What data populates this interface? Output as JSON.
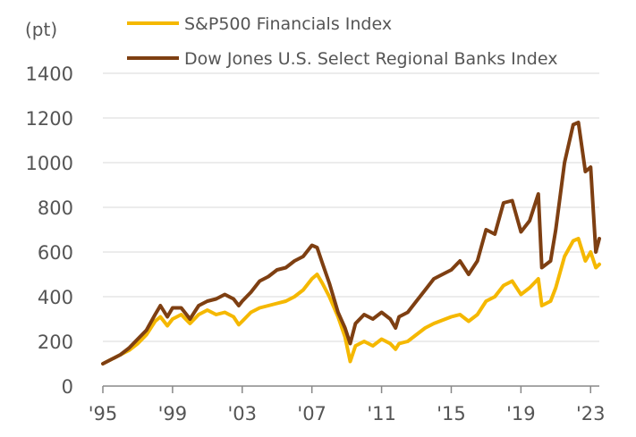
{
  "chart_data": {
    "type": "line",
    "ylabel": "(pt)",
    "ylim": [
      0,
      1400
    ],
    "yticks": [
      0,
      200,
      400,
      600,
      800,
      1000,
      1200,
      1400
    ],
    "xlim": [
      1995.0,
      2023.5
    ],
    "xticks": [
      {
        "value": 1995,
        "label": "'95"
      },
      {
        "value": 1999,
        "label": "'99"
      },
      {
        "value": 2003,
        "label": "'03"
      },
      {
        "value": 2007,
        "label": "'07"
      },
      {
        "value": 2011,
        "label": "'11"
      },
      {
        "value": 2015,
        "label": "'15"
      },
      {
        "value": 2019,
        "label": "'19"
      },
      {
        "value": 2023,
        "label": "'23"
      }
    ],
    "grid": true,
    "legend_position": "top",
    "series": [
      {
        "name": "S&P500 Financials Index",
        "color": "#F5B800",
        "points": [
          [
            1995.0,
            100
          ],
          [
            1995.5,
            120
          ],
          [
            1996.0,
            140
          ],
          [
            1996.5,
            160
          ],
          [
            1997.0,
            190
          ],
          [
            1997.5,
            230
          ],
          [
            1998.0,
            290
          ],
          [
            1998.3,
            310
          ],
          [
            1998.7,
            270
          ],
          [
            1999.0,
            300
          ],
          [
            1999.5,
            320
          ],
          [
            2000.0,
            280
          ],
          [
            2000.5,
            320
          ],
          [
            2001.0,
            340
          ],
          [
            2001.5,
            320
          ],
          [
            2002.0,
            330
          ],
          [
            2002.5,
            310
          ],
          [
            2002.8,
            275
          ],
          [
            2003.0,
            290
          ],
          [
            2003.5,
            330
          ],
          [
            2004.0,
            350
          ],
          [
            2004.5,
            360
          ],
          [
            2005.0,
            370
          ],
          [
            2005.5,
            380
          ],
          [
            2006.0,
            400
          ],
          [
            2006.5,
            430
          ],
          [
            2007.0,
            480
          ],
          [
            2007.3,
            500
          ],
          [
            2007.6,
            460
          ],
          [
            2008.0,
            400
          ],
          [
            2008.5,
            310
          ],
          [
            2008.9,
            220
          ],
          [
            2009.2,
            110
          ],
          [
            2009.5,
            180
          ],
          [
            2010.0,
            200
          ],
          [
            2010.5,
            180
          ],
          [
            2011.0,
            210
          ],
          [
            2011.5,
            190
          ],
          [
            2011.8,
            165
          ],
          [
            2012.0,
            190
          ],
          [
            2012.5,
            200
          ],
          [
            2013.0,
            230
          ],
          [
            2013.5,
            260
          ],
          [
            2014.0,
            280
          ],
          [
            2014.5,
            295
          ],
          [
            2015.0,
            310
          ],
          [
            2015.5,
            320
          ],
          [
            2016.0,
            290
          ],
          [
            2016.5,
            320
          ],
          [
            2017.0,
            380
          ],
          [
            2017.5,
            400
          ],
          [
            2018.0,
            450
          ],
          [
            2018.5,
            470
          ],
          [
            2019.0,
            410
          ],
          [
            2019.5,
            440
          ],
          [
            2020.0,
            480
          ],
          [
            2020.2,
            360
          ],
          [
            2020.7,
            380
          ],
          [
            2021.0,
            440
          ],
          [
            2021.5,
            580
          ],
          [
            2022.0,
            650
          ],
          [
            2022.3,
            660
          ],
          [
            2022.7,
            560
          ],
          [
            2023.0,
            600
          ],
          [
            2023.3,
            530
          ],
          [
            2023.5,
            545
          ]
        ]
      },
      {
        "name": "Dow Jones U.S. Select Regional Banks Index",
        "color": "#7E3F12",
        "points": [
          [
            1995.0,
            100
          ],
          [
            1995.5,
            120
          ],
          [
            1996.0,
            140
          ],
          [
            1996.5,
            170
          ],
          [
            1997.0,
            210
          ],
          [
            1997.5,
            250
          ],
          [
            1998.0,
            320
          ],
          [
            1998.3,
            360
          ],
          [
            1998.7,
            310
          ],
          [
            1999.0,
            350
          ],
          [
            1999.5,
            350
          ],
          [
            2000.0,
            300
          ],
          [
            2000.5,
            360
          ],
          [
            2001.0,
            380
          ],
          [
            2001.5,
            390
          ],
          [
            2002.0,
            410
          ],
          [
            2002.5,
            390
          ],
          [
            2002.8,
            360
          ],
          [
            2003.0,
            380
          ],
          [
            2003.5,
            420
          ],
          [
            2004.0,
            470
          ],
          [
            2004.5,
            490
          ],
          [
            2005.0,
            520
          ],
          [
            2005.5,
            530
          ],
          [
            2006.0,
            560
          ],
          [
            2006.5,
            580
          ],
          [
            2007.0,
            630
          ],
          [
            2007.3,
            620
          ],
          [
            2007.6,
            550
          ],
          [
            2008.0,
            460
          ],
          [
            2008.5,
            330
          ],
          [
            2008.9,
            260
          ],
          [
            2009.2,
            190
          ],
          [
            2009.5,
            280
          ],
          [
            2010.0,
            320
          ],
          [
            2010.5,
            300
          ],
          [
            2011.0,
            330
          ],
          [
            2011.5,
            300
          ],
          [
            2011.8,
            260
          ],
          [
            2012.0,
            310
          ],
          [
            2012.5,
            330
          ],
          [
            2013.0,
            380
          ],
          [
            2013.5,
            430
          ],
          [
            2014.0,
            480
          ],
          [
            2014.5,
            500
          ],
          [
            2015.0,
            520
          ],
          [
            2015.5,
            560
          ],
          [
            2016.0,
            500
          ],
          [
            2016.5,
            560
          ],
          [
            2017.0,
            700
          ],
          [
            2017.5,
            680
          ],
          [
            2018.0,
            820
          ],
          [
            2018.5,
            830
          ],
          [
            2019.0,
            690
          ],
          [
            2019.5,
            740
          ],
          [
            2020.0,
            860
          ],
          [
            2020.2,
            530
          ],
          [
            2020.7,
            560
          ],
          [
            2021.0,
            700
          ],
          [
            2021.5,
            1000
          ],
          [
            2022.0,
            1170
          ],
          [
            2022.3,
            1180
          ],
          [
            2022.7,
            960
          ],
          [
            2023.0,
            980
          ],
          [
            2023.3,
            600
          ],
          [
            2023.5,
            660
          ]
        ]
      }
    ]
  }
}
